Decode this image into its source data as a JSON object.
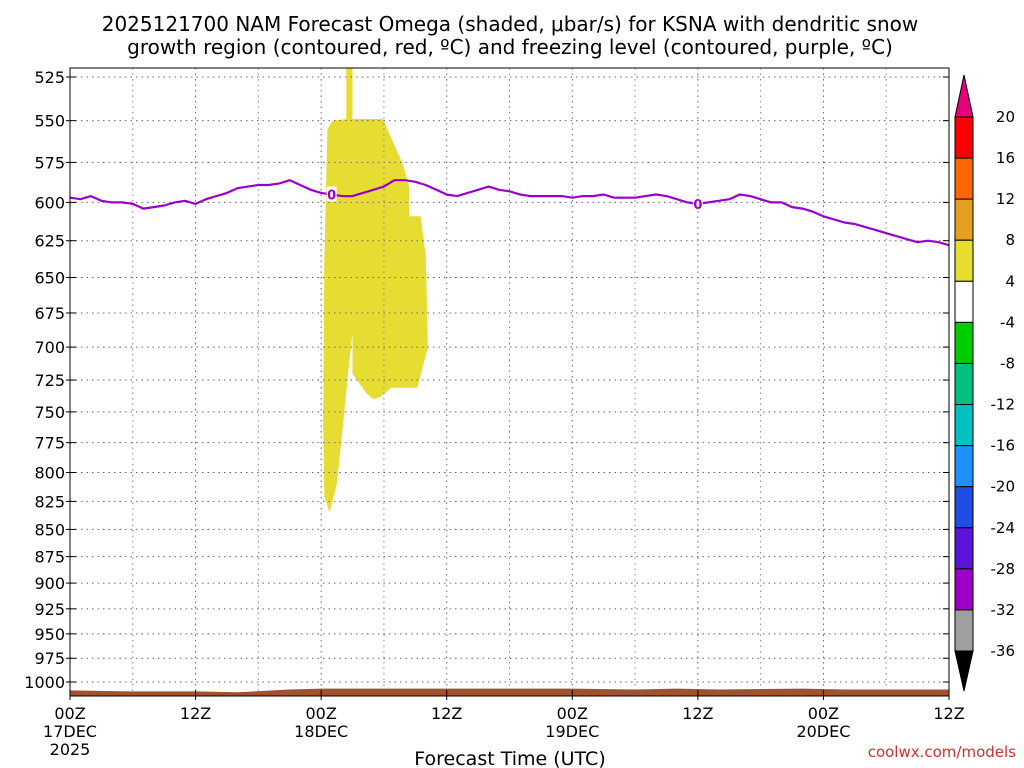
{
  "title_line1": "2025121700 NAM Forecast Omega (shaded, μbar/s) for KSNA with dendritic snow",
  "title_line2": "growth region (contoured, red, ºC) and freezing level (contoured, purple, ºC)",
  "credit": "coolwx.com/models",
  "chart_data": {
    "type": "heatmap",
    "title": "2025121700 NAM Forecast Omega (shaded, μbar/s) for KSNA with dendritic snow growth region (contoured, red, ºC) and freezing level (contoured, purple, ºC)",
    "xlabel": "Forecast Time (UTC)",
    "ylabel": "",
    "x_range_hours": [
      0,
      84
    ],
    "y_range_mb": [
      520,
      1015
    ],
    "y_scale": "log-pressure",
    "grid": true,
    "x_ticks": [
      {
        "hour": 0,
        "line1": "00Z",
        "line2": "17DEC",
        "line3": "2025"
      },
      {
        "hour": 12,
        "line1": "12Z",
        "line2": "",
        "line3": ""
      },
      {
        "hour": 24,
        "line1": "00Z",
        "line2": "18DEC",
        "line3": ""
      },
      {
        "hour": 36,
        "line1": "12Z",
        "line2": "",
        "line3": ""
      },
      {
        "hour": 48,
        "line1": "00Z",
        "line2": "19DEC",
        "line3": ""
      },
      {
        "hour": 60,
        "line1": "12Z",
        "line2": "",
        "line3": ""
      },
      {
        "hour": 72,
        "line1": "00Z",
        "line2": "20DEC",
        "line3": ""
      },
      {
        "hour": 84,
        "line1": "12Z",
        "line2": "",
        "line3": ""
      }
    ],
    "y_ticks": [
      525,
      550,
      575,
      600,
      625,
      650,
      675,
      700,
      725,
      750,
      775,
      800,
      825,
      850,
      875,
      900,
      925,
      950,
      975,
      1000
    ],
    "omega_shaded_region": {
      "value_range": "4 to 8",
      "color": "#e6dc32",
      "outline": [
        [
          26.4,
          520
        ],
        [
          27.0,
          520
        ],
        [
          27.0,
          549
        ],
        [
          29.9,
          549
        ],
        [
          31.8,
          576
        ],
        [
          32.4,
          590
        ],
        [
          32.4,
          609
        ],
        [
          33.5,
          609
        ],
        [
          34.0,
          635
        ],
        [
          34.2,
          700
        ],
        [
          33.2,
          731
        ],
        [
          30.7,
          731
        ],
        [
          29.7,
          738
        ],
        [
          29.0,
          740
        ],
        [
          28.3,
          735
        ],
        [
          27.0,
          720
        ],
        [
          27.0,
          690
        ],
        [
          26.7,
          710
        ],
        [
          26.1,
          760
        ],
        [
          25.5,
          810
        ],
        [
          24.8,
          835
        ],
        [
          24.3,
          820
        ],
        [
          24.2,
          760
        ],
        [
          24.3,
          640
        ],
        [
          24.6,
          555
        ],
        [
          25.1,
          550
        ],
        [
          26.4,
          549
        ]
      ]
    },
    "freezing_level": {
      "label": "0",
      "color": "#9900cc",
      "label_hours": [
        25,
        60
      ],
      "points": [
        [
          0,
          597
        ],
        [
          1,
          598
        ],
        [
          2,
          596
        ],
        [
          3,
          599
        ],
        [
          4,
          600
        ],
        [
          5,
          600
        ],
        [
          6,
          601
        ],
        [
          7,
          604
        ],
        [
          8,
          603
        ],
        [
          9,
          602
        ],
        [
          10,
          600
        ],
        [
          11,
          599
        ],
        [
          12,
          601
        ],
        [
          13,
          598
        ],
        [
          14,
          596
        ],
        [
          15,
          594
        ],
        [
          16,
          591
        ],
        [
          17,
          590
        ],
        [
          18,
          589
        ],
        [
          19,
          589
        ],
        [
          20,
          588
        ],
        [
          21,
          586
        ],
        [
          22,
          589
        ],
        [
          23,
          592
        ],
        [
          24,
          594
        ],
        [
          25,
          595
        ],
        [
          26,
          596
        ],
        [
          27,
          596
        ],
        [
          28,
          594
        ],
        [
          29,
          592
        ],
        [
          30,
          590
        ],
        [
          31,
          586
        ],
        [
          32,
          586
        ],
        [
          33,
          587
        ],
        [
          34,
          589
        ],
        [
          35,
          592
        ],
        [
          36,
          595
        ],
        [
          37,
          596
        ],
        [
          38,
          594
        ],
        [
          39,
          592
        ],
        [
          40,
          590
        ],
        [
          41,
          592
        ],
        [
          42,
          593
        ],
        [
          43,
          595
        ],
        [
          44,
          596
        ],
        [
          45,
          596
        ],
        [
          46,
          596
        ],
        [
          47,
          596
        ],
        [
          48,
          597
        ],
        [
          49,
          596
        ],
        [
          50,
          596
        ],
        [
          51,
          595
        ],
        [
          52,
          597
        ],
        [
          53,
          597
        ],
        [
          54,
          597
        ],
        [
          55,
          596
        ],
        [
          56,
          595
        ],
        [
          57,
          596
        ],
        [
          58,
          598
        ],
        [
          59,
          600
        ],
        [
          60,
          601
        ],
        [
          61,
          600
        ],
        [
          62,
          599
        ],
        [
          63,
          598
        ],
        [
          64,
          595
        ],
        [
          65,
          596
        ],
        [
          66,
          598
        ],
        [
          67,
          600
        ],
        [
          68,
          600
        ],
        [
          69,
          603
        ],
        [
          70,
          604
        ],
        [
          71,
          606
        ],
        [
          72,
          609
        ],
        [
          73,
          611
        ],
        [
          74,
          613
        ],
        [
          75,
          614
        ],
        [
          76,
          616
        ],
        [
          77,
          618
        ],
        [
          78,
          620
        ],
        [
          79,
          622
        ],
        [
          80,
          624
        ],
        [
          81,
          626
        ],
        [
          82,
          625
        ],
        [
          83,
          626
        ],
        [
          84,
          628
        ]
      ]
    },
    "surface": {
      "color": "#a0522d",
      "points": [
        [
          0,
          1009
        ],
        [
          6,
          1010
        ],
        [
          12,
          1010
        ],
        [
          16,
          1011
        ],
        [
          21,
          1008
        ],
        [
          24,
          1007
        ],
        [
          36,
          1007
        ],
        [
          48,
          1007
        ],
        [
          54,
          1008
        ],
        [
          58,
          1007
        ],
        [
          62,
          1008
        ],
        [
          70,
          1007
        ],
        [
          74,
          1008
        ],
        [
          84,
          1008
        ]
      ]
    },
    "colorbar": {
      "labels": [
        "20",
        "16",
        "12",
        "8",
        "4",
        "-4",
        "-8",
        "-12",
        "-16",
        "-20",
        "-24",
        "-28",
        "-32",
        "-36"
      ],
      "colors": [
        "#ff0000",
        "#ff6600",
        "#e6a020",
        "#e6dc32",
        "#ffffff",
        "#00cc00",
        "#00c080",
        "#00c0c0",
        "#1e90ff",
        "#1e4ee6",
        "#5a14dc",
        "#9e00c8",
        "#a0a0a0"
      ],
      "top_arrow_color": "#e6007a",
      "bottom_arrow_color": "#000000"
    }
  }
}
